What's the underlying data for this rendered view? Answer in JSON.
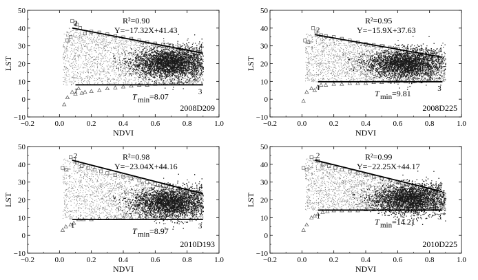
{
  "figure": {
    "x_axis_label": "NDVI",
    "y_axis_label": "LST",
    "x_ticks": [
      "−0.2",
      "0.0",
      "0.2",
      "0.4",
      "0.6",
      "0.8",
      "1.0"
    ],
    "y_ticks": [
      "−10",
      "0",
      "10",
      "20",
      "30",
      "40",
      "50"
    ],
    "vertex_labels": [
      "1",
      "2",
      "3",
      "4"
    ],
    "colors": {
      "ink": "#000000",
      "cloud": "#1a1a1a",
      "scatter": "#8a8a8a",
      "marker": "#555555"
    }
  },
  "chart_data": [
    {
      "type": "scatter",
      "id": "2008D209",
      "panel_label": "2008D209",
      "r2_text": "R²=0.90",
      "eq_text": "Y=−17.32X+41.43",
      "tmin_text": "T",
      "tmin_sub": "min",
      "tmin_value": "=8.07",
      "xlabel": "NDVI",
      "ylabel": "LST",
      "xlim": [
        -0.2,
        1.0
      ],
      "ylim": [
        -10,
        50
      ],
      "dry_edge": {
        "slope": -17.32,
        "intercept": 41.43,
        "x_range": [
          0.08,
          0.9
        ]
      },
      "wet_edge": {
        "value": 8.07,
        "x_range": [
          0.1,
          0.9
        ]
      },
      "cloud_center": [
        0.7,
        20.5
      ],
      "max_points": [
        [
          0.05,
          33
        ],
        [
          0.07,
          35
        ],
        [
          0.08,
          44
        ],
        [
          0.1,
          43
        ],
        [
          0.11,
          42
        ],
        [
          0.13,
          40
        ],
        [
          0.16,
          37
        ],
        [
          0.2,
          38
        ],
        [
          0.25,
          37.5
        ],
        [
          0.3,
          36.5
        ],
        [
          0.35,
          35.5
        ],
        [
          0.4,
          34.8
        ],
        [
          0.45,
          34
        ],
        [
          0.5,
          33
        ],
        [
          0.55,
          32
        ],
        [
          0.6,
          31.3
        ],
        [
          0.65,
          30.8
        ],
        [
          0.7,
          30.2
        ],
        [
          0.75,
          29.8
        ],
        [
          0.8,
          29
        ],
        [
          0.85,
          28
        ],
        [
          0.88,
          26.5
        ]
      ],
      "min_points": [
        [
          0.03,
          -3
        ],
        [
          0.05,
          1
        ],
        [
          0.08,
          4
        ],
        [
          0.1,
          3
        ],
        [
          0.12,
          6
        ],
        [
          0.14,
          3.5
        ],
        [
          0.16,
          4
        ],
        [
          0.2,
          4.5
        ],
        [
          0.25,
          5
        ],
        [
          0.3,
          6
        ],
        [
          0.35,
          6.5
        ],
        [
          0.4,
          7
        ],
        [
          0.45,
          7.5
        ],
        [
          0.5,
          8
        ],
        [
          0.55,
          8
        ],
        [
          0.6,
          8.5
        ],
        [
          0.65,
          9
        ],
        [
          0.7,
          9.5
        ],
        [
          0.75,
          10
        ],
        [
          0.8,
          10.5
        ],
        [
          0.85,
          11
        ]
      ]
    },
    {
      "type": "scatter",
      "id": "2008D225",
      "panel_label": "2008D225",
      "r2_text": "R²=0.95",
      "eq_text": "Y=−15.9X+37.63",
      "tmin_text": "T",
      "tmin_sub": "min",
      "tmin_value": "=9.81",
      "xlabel": "NDVI",
      "ylabel": "LST",
      "xlim": [
        -0.2,
        1.0
      ],
      "ylim": [
        -10,
        50
      ],
      "dry_edge": {
        "slope": -15.9,
        "intercept": 37.63,
        "x_range": [
          0.08,
          0.88
        ]
      },
      "wet_edge": {
        "value": 9.81,
        "x_range": [
          0.1,
          0.88
        ]
      },
      "cloud_center": [
        0.65,
        20
      ],
      "max_points": [
        [
          0.02,
          33
        ],
        [
          0.04,
          32
        ],
        [
          0.07,
          40
        ],
        [
          0.09,
          38
        ],
        [
          0.12,
          36
        ],
        [
          0.15,
          35.5
        ],
        [
          0.2,
          35
        ],
        [
          0.25,
          34
        ],
        [
          0.3,
          33
        ],
        [
          0.35,
          32
        ],
        [
          0.4,
          31
        ],
        [
          0.45,
          30.5
        ],
        [
          0.5,
          30
        ],
        [
          0.55,
          29
        ],
        [
          0.6,
          28.5
        ],
        [
          0.65,
          28
        ],
        [
          0.7,
          27.5
        ],
        [
          0.75,
          27
        ],
        [
          0.8,
          26.5
        ],
        [
          0.85,
          25.5
        ],
        [
          0.88,
          23
        ]
      ],
      "min_points": [
        [
          0.01,
          -1
        ],
        [
          0.03,
          4
        ],
        [
          0.06,
          6
        ],
        [
          0.08,
          5
        ],
        [
          0.1,
          7
        ],
        [
          0.12,
          8
        ],
        [
          0.15,
          8
        ],
        [
          0.2,
          8.5
        ],
        [
          0.25,
          8.5
        ],
        [
          0.3,
          9
        ],
        [
          0.35,
          9
        ],
        [
          0.4,
          9
        ],
        [
          0.45,
          9.5
        ],
        [
          0.5,
          9.5
        ],
        [
          0.55,
          10
        ],
        [
          0.6,
          10
        ],
        [
          0.65,
          10
        ],
        [
          0.7,
          10
        ],
        [
          0.75,
          10.5
        ],
        [
          0.8,
          10.5
        ]
      ]
    },
    {
      "type": "scatter",
      "id": "2010D193",
      "panel_label": "2010D193",
      "r2_text": "R²=0.98",
      "eq_text": "Y=−23.04X+44.16",
      "tmin_text": "T",
      "tmin_sub": "min",
      "tmin_value": "=8.97",
      "xlabel": "NDVI",
      "ylabel": "LST",
      "xlim": [
        -0.2,
        1.0
      ],
      "ylim": [
        -10,
        50
      ],
      "dry_edge": {
        "slope": -23.04,
        "intercept": 44.16,
        "x_range": [
          0.08,
          0.9
        ]
      },
      "wet_edge": {
        "value": 8.97,
        "x_range": [
          0.08,
          0.9
        ]
      },
      "cloud_center": [
        0.7,
        18.5
      ],
      "max_points": [
        [
          0.02,
          38
        ],
        [
          0.04,
          37
        ],
        [
          0.07,
          44
        ],
        [
          0.09,
          43
        ],
        [
          0.11,
          41
        ],
        [
          0.14,
          39
        ],
        [
          0.18,
          38
        ],
        [
          0.22,
          37
        ],
        [
          0.26,
          36
        ],
        [
          0.3,
          35
        ],
        [
          0.35,
          34
        ],
        [
          0.4,
          33
        ],
        [
          0.45,
          32
        ],
        [
          0.5,
          31
        ],
        [
          0.55,
          30
        ],
        [
          0.6,
          29
        ],
        [
          0.65,
          28
        ],
        [
          0.7,
          27
        ],
        [
          0.75,
          26.5
        ],
        [
          0.8,
          25.5
        ],
        [
          0.85,
          24.5
        ],
        [
          0.88,
          23.5
        ]
      ],
      "min_points": [
        [
          0.02,
          3
        ],
        [
          0.04,
          5
        ],
        [
          0.07,
          6
        ],
        [
          0.09,
          7
        ],
        [
          0.12,
          9
        ],
        [
          0.15,
          9
        ],
        [
          0.2,
          9
        ],
        [
          0.25,
          9.5
        ],
        [
          0.3,
          9.5
        ],
        [
          0.35,
          10
        ],
        [
          0.4,
          10
        ],
        [
          0.45,
          10
        ],
        [
          0.5,
          10
        ],
        [
          0.55,
          10.5
        ],
        [
          0.6,
          10.5
        ],
        [
          0.65,
          10.5
        ],
        [
          0.7,
          11
        ]
      ]
    },
    {
      "type": "scatter",
      "id": "2010D225",
      "panel_label": "2010D225",
      "r2_text": "R²=0.99",
      "eq_text": "Y=−22.25X+44.17",
      "tmin_text": "T",
      "tmin_sub": "min",
      "tmin_value": "=14.21",
      "xlabel": "NDVI",
      "ylabel": "LST",
      "xlim": [
        -0.2,
        1.0
      ],
      "ylim": [
        -10,
        50
      ],
      "dry_edge": {
        "slope": -22.25,
        "intercept": 44.17,
        "x_range": [
          0.08,
          0.88
        ]
      },
      "wet_edge": {
        "value": 14.21,
        "x_range": [
          0.1,
          0.88
        ]
      },
      "cloud_center": [
        0.68,
        20.5
      ],
      "max_points": [
        [
          0.01,
          38
        ],
        [
          0.03,
          37
        ],
        [
          0.06,
          44
        ],
        [
          0.08,
          43
        ],
        [
          0.1,
          42
        ],
        [
          0.13,
          40
        ],
        [
          0.17,
          39
        ],
        [
          0.21,
          38
        ],
        [
          0.25,
          37
        ],
        [
          0.3,
          36
        ],
        [
          0.35,
          35
        ],
        [
          0.4,
          34
        ],
        [
          0.45,
          33
        ],
        [
          0.5,
          32
        ],
        [
          0.55,
          31
        ],
        [
          0.6,
          30
        ],
        [
          0.65,
          29
        ],
        [
          0.7,
          28
        ],
        [
          0.75,
          27
        ],
        [
          0.8,
          26
        ],
        [
          0.85,
          25
        ]
      ],
      "min_points": [
        [
          0.01,
          3
        ],
        [
          0.03,
          6
        ],
        [
          0.06,
          10
        ],
        [
          0.08,
          11
        ],
        [
          0.1,
          12
        ],
        [
          0.13,
          13
        ],
        [
          0.16,
          13.5
        ],
        [
          0.2,
          14
        ],
        [
          0.25,
          14
        ],
        [
          0.3,
          14
        ],
        [
          0.35,
          14
        ],
        [
          0.4,
          14.5
        ],
        [
          0.45,
          14.5
        ],
        [
          0.5,
          14.5
        ],
        [
          0.55,
          14.5
        ],
        [
          0.6,
          14.5
        ],
        [
          0.65,
          15
        ]
      ]
    }
  ]
}
